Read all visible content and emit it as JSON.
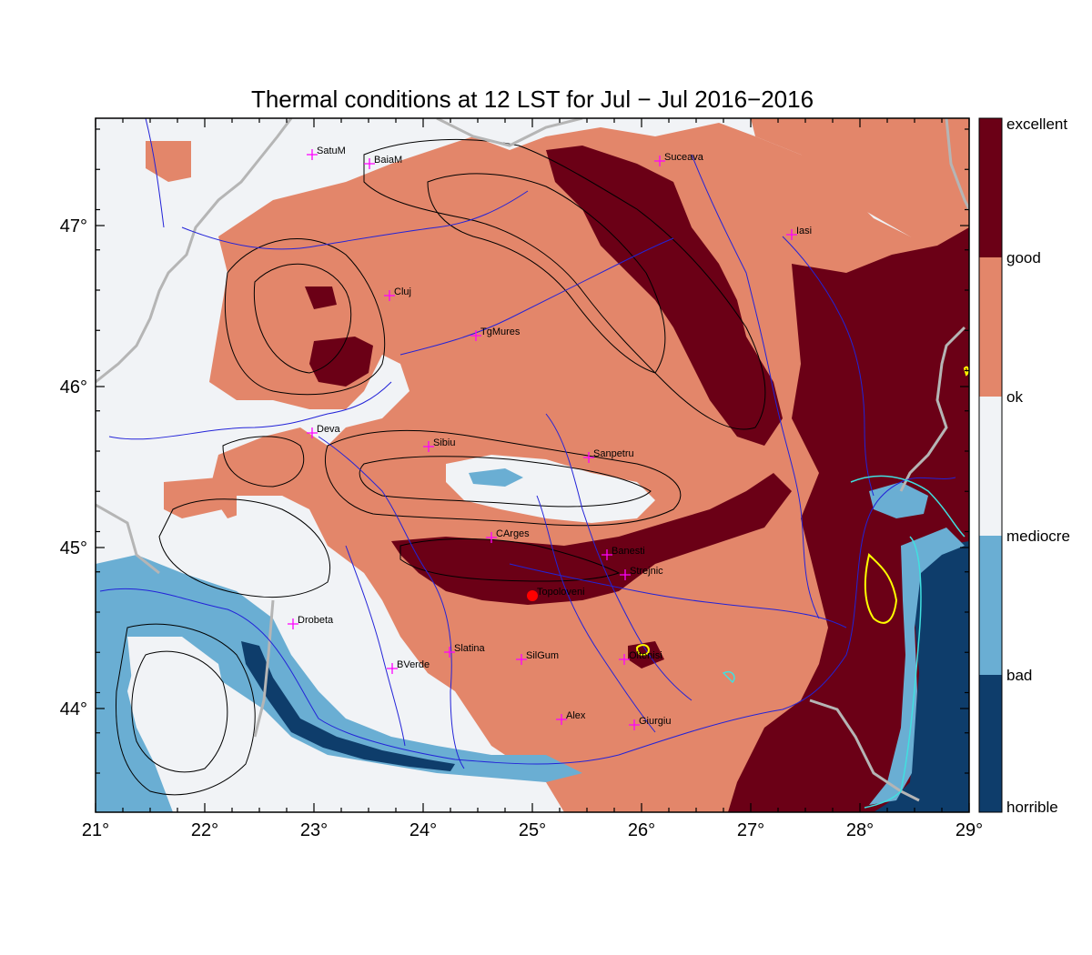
{
  "title": "Thermal conditions at 12 LST for Jul − Jul  2016−2016",
  "x_ticks": [
    "21°",
    "22°",
    "23°",
    "24°",
    "25°",
    "26°",
    "27°",
    "28°",
    "29°"
  ],
  "y_ticks": [
    "47°",
    "46°",
    "45°",
    "44°"
  ],
  "colorbar": {
    "labels": [
      "excellent",
      "good",
      "ok",
      "mediocre",
      "bad",
      "horrible"
    ],
    "colors": [
      "#6b0016",
      "#e3866a",
      "#f1f3f6",
      "#6aaed3",
      "#0e3d6b"
    ]
  },
  "colors": {
    "ok": "#f1f3f6",
    "good": "#e3866a",
    "excellent": "#6b0016",
    "bad": "#6aaed3",
    "horrible": "#0e3d6b",
    "rivers": "#2323d8",
    "borders": "#b5b5b5",
    "contours": "#000000",
    "city_marker": "#ff00ff",
    "highlight_marker": "#ff0000"
  },
  "cities": [
    {
      "name": "SatuM"
    },
    {
      "name": "BaiaM"
    },
    {
      "name": "Suceava"
    },
    {
      "name": "Iasi"
    },
    {
      "name": "Cluj"
    },
    {
      "name": "TgMures"
    },
    {
      "name": "Deva"
    },
    {
      "name": "Sibiu"
    },
    {
      "name": "Sanpetru"
    },
    {
      "name": "CArges"
    },
    {
      "name": "Banesti"
    },
    {
      "name": "Strejnic"
    },
    {
      "name": "Topoloveni",
      "highlight": true
    },
    {
      "name": "Drobeta"
    },
    {
      "name": "Slatina"
    },
    {
      "name": "SilGum"
    },
    {
      "name": "Oltenisi"
    },
    {
      "name": "BVerde"
    },
    {
      "name": "Alex"
    },
    {
      "name": "Giurgiu"
    }
  ]
}
